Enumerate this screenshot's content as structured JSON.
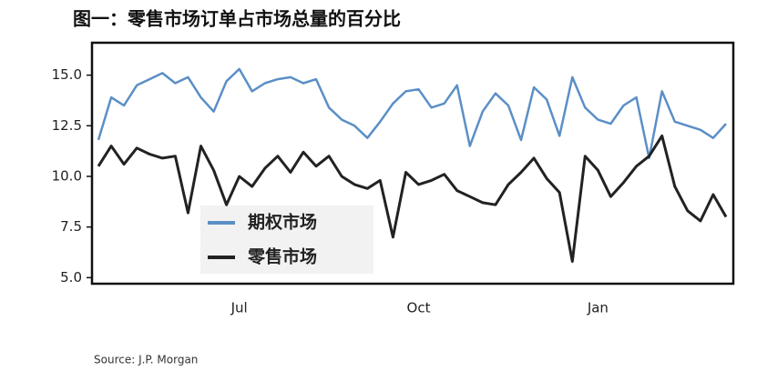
{
  "chart_data": {
    "type": "line",
    "title": "图一：零售市场订单占市场总量的百分比",
    "source": "Source: J.P. Morgan",
    "categories": [
      null,
      null,
      null,
      null,
      null,
      null,
      null,
      null,
      null,
      null,
      null,
      "Jul",
      null,
      null,
      null,
      null,
      null,
      null,
      null,
      null,
      null,
      null,
      null,
      null,
      null,
      "Oct",
      null,
      null,
      null,
      null,
      null,
      null,
      null,
      null,
      null,
      null,
      null,
      null,
      null,
      "Jan",
      null,
      null,
      null,
      null,
      null,
      null,
      null,
      null,
      null,
      null
    ],
    "series": [
      {
        "name": "期权市场",
        "color": "#5b8fc6",
        "values": [
          11.8,
          13.9,
          13.5,
          14.5,
          14.8,
          15.1,
          14.6,
          14.9,
          13.9,
          13.2,
          14.7,
          15.3,
          14.2,
          14.6,
          14.8,
          14.9,
          14.6,
          14.8,
          13.4,
          12.8,
          12.5,
          11.9,
          12.7,
          13.6,
          14.2,
          14.3,
          13.4,
          13.6,
          14.5,
          11.5,
          13.2,
          14.1,
          13.5,
          11.8,
          14.4,
          13.8,
          12.0,
          14.9,
          13.4,
          12.8,
          12.6,
          13.5,
          13.9,
          10.9,
          14.2,
          12.7,
          12.5,
          12.3,
          11.9,
          12.6
        ]
      },
      {
        "name": "零售市场",
        "color": "#222222",
        "values": [
          10.5,
          11.5,
          10.6,
          11.4,
          11.1,
          10.9,
          11.0,
          8.2,
          11.5,
          10.3,
          8.6,
          10.0,
          9.5,
          10.4,
          11.0,
          10.2,
          11.2,
          10.5,
          11.0,
          10.0,
          9.6,
          9.4,
          9.8,
          7.0,
          10.2,
          9.6,
          9.8,
          10.1,
          9.3,
          9.0,
          8.7,
          8.6,
          9.6,
          10.2,
          10.9,
          9.9,
          9.2,
          5.8,
          11.0,
          10.3,
          9.0,
          9.7,
          10.5,
          11.0,
          12.0,
          9.5,
          8.3,
          7.8,
          9.1,
          8.0
        ]
      }
    ],
    "ylim": [
      4.7,
      16.6
    ],
    "yticks": [
      {
        "value": 5,
        "label": "5.0"
      },
      {
        "value": 7.5,
        "label": "7.5"
      },
      {
        "value": 10,
        "label": "10.0"
      },
      {
        "value": 12.5,
        "label": "12.5"
      },
      {
        "value": 15,
        "label": "15.0"
      }
    ],
    "grid": false
  }
}
